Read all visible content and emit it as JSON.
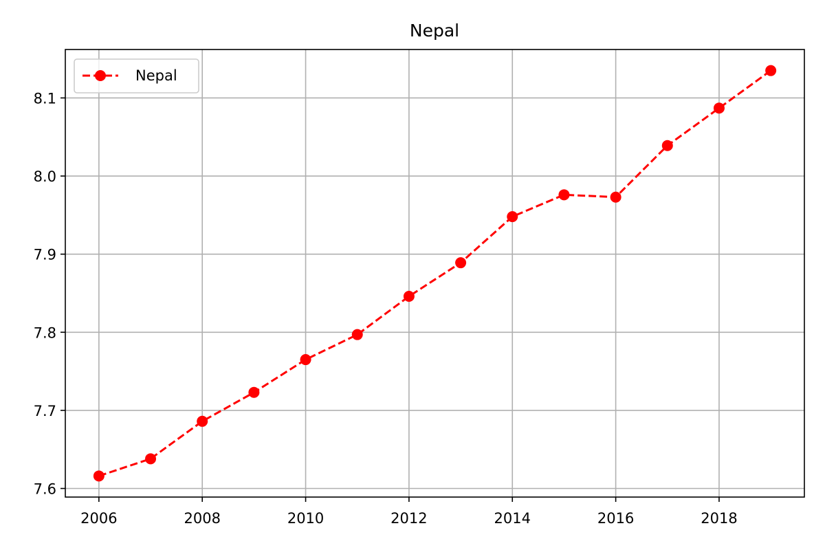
{
  "chart_data": {
    "type": "line",
    "title": "Nepal",
    "xlabel": "",
    "ylabel": "",
    "x_ticks": [
      2006,
      2008,
      2010,
      2012,
      2014,
      2016,
      2018
    ],
    "y_ticks": [
      7.6,
      7.7,
      7.8,
      7.9,
      8.0,
      8.1
    ],
    "y_tick_labels": [
      "7.6",
      "7.7",
      "7.8",
      "7.9",
      "8.0",
      "8.1"
    ],
    "xlim": [
      2005.35,
      2019.65
    ],
    "ylim": [
      7.589,
      8.162
    ],
    "grid": true,
    "legend": {
      "placement": "top-left",
      "entries": [
        "Nepal"
      ]
    },
    "series": [
      {
        "name": "Nepal",
        "color": "#ff0000",
        "line_style": "dashed",
        "marker": "circle",
        "x": [
          2006,
          2007,
          2008,
          2009,
          2010,
          2011,
          2012,
          2013,
          2014,
          2015,
          2016,
          2017,
          2018,
          2019
        ],
        "y": [
          7.616,
          7.638,
          7.686,
          7.723,
          7.765,
          7.797,
          7.846,
          7.889,
          7.948,
          7.976,
          7.973,
          8.039,
          8.087,
          8.135
        ]
      }
    ]
  }
}
